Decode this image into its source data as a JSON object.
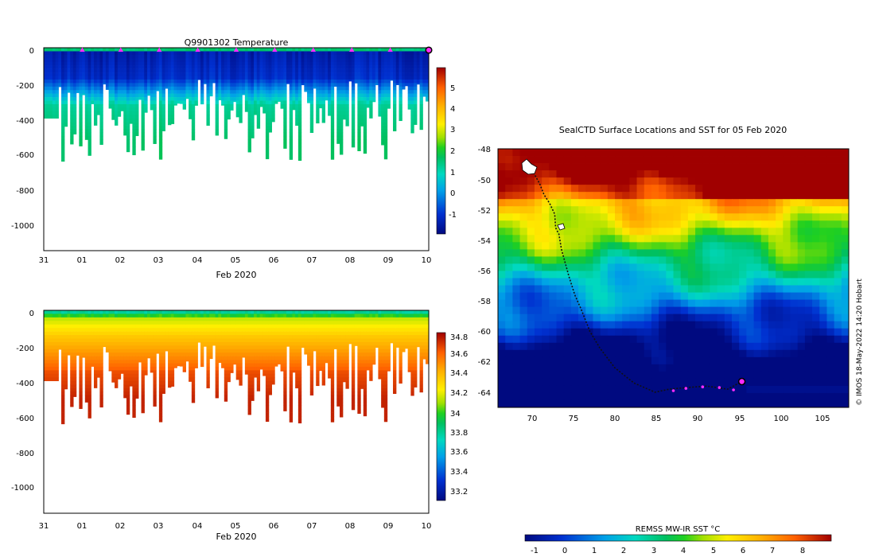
{
  "chart_data": [
    {
      "id": "temperature",
      "type": "heatmap",
      "title": "Q9901302  Temperature",
      "xlabel": "Feb 2020",
      "x_ticks": [
        "31",
        "01",
        "02",
        "03",
        "04",
        "05",
        "06",
        "07",
        "08",
        "09",
        "10"
      ],
      "x_range_days": [
        0,
        10
      ],
      "y_ticks": [
        "0",
        "-200",
        "-400",
        "-600",
        "-800",
        "-1000"
      ],
      "ylim": [
        -1150,
        0
      ],
      "colorbar": {
        "ticks": [
          "5",
          "4",
          "3",
          "2",
          "1",
          "0",
          "-1"
        ],
        "range": [
          -1.7,
          6
        ]
      },
      "surface_markers_day": [
        1,
        2,
        3,
        4,
        5,
        6,
        7,
        8,
        9
      ],
      "current_marker_day": 10
    },
    {
      "id": "salinity",
      "type": "heatmap",
      "title": "",
      "xlabel": "Feb 2020",
      "x_ticks": [
        "31",
        "01",
        "02",
        "03",
        "04",
        "05",
        "06",
        "07",
        "08",
        "09",
        "10"
      ],
      "x_range_days": [
        0,
        10
      ],
      "y_ticks": [
        "0",
        "-200",
        "-400",
        "-600",
        "-800",
        "-1000"
      ],
      "ylim": [
        -1150,
        0
      ],
      "colorbar": {
        "ticks": [
          "34.8",
          "34.6",
          "34.4",
          "34.2",
          "34",
          "33.8",
          "33.6",
          "33.4",
          "33.2"
        ],
        "range": [
          33.05,
          34.9
        ]
      }
    },
    {
      "id": "sst_map",
      "type": "heatmap",
      "title": "SealCTD Surface Locations and SST for 05 Feb 2020",
      "x_ticks": [
        "70",
        "75",
        "80",
        "85",
        "90",
        "95",
        "100",
        "105"
      ],
      "xlim": [
        66,
        108
      ],
      "y_ticks": [
        "-48",
        "-50",
        "-52",
        "-54",
        "-56",
        "-58",
        "-60",
        "-62",
        "-64"
      ],
      "ylim": [
        -65,
        -48
      ],
      "colorbar": {
        "label": "REMSS MW-IR SST °C",
        "ticks": [
          "-1",
          "0",
          "1",
          "2",
          "3",
          "4",
          "5",
          "6",
          "7",
          "8"
        ],
        "range": [
          -1.5,
          9
        ]
      },
      "track_lon": [
        69.5,
        70.3,
        71.0,
        71.5,
        72.2,
        72.8,
        72.9,
        73.3,
        73.6,
        74.5,
        75.2,
        76.0,
        77.0,
        78.2,
        80.0,
        82.3,
        84.8,
        86.5,
        88.5,
        91.0,
        93.5,
        95.2
      ],
      "track_lat": [
        -49.1,
        -49.6,
        -50.3,
        -51.0,
        -51.6,
        -52.3,
        -53.2,
        -53.6,
        -54.6,
        -56.4,
        -57.6,
        -58.6,
        -60.0,
        -61.1,
        -62.4,
        -63.4,
        -64.0,
        -63.8,
        -63.7,
        -63.6,
        -63.8,
        -63.3
      ],
      "highlight_lon": [
        87.0,
        88.5,
        90.5,
        92.5,
        94.2
      ],
      "highlight_lat": [
        -63.9,
        -63.75,
        -63.65,
        -63.7,
        -63.85
      ],
      "current_position": {
        "lon": 95.2,
        "lat": -63.3
      },
      "credit": "© IMOS 18-May-2022 14:20 Hobart"
    }
  ],
  "colors": {
    "marker_magenta": "#ff2bff",
    "track": "#111111"
  }
}
